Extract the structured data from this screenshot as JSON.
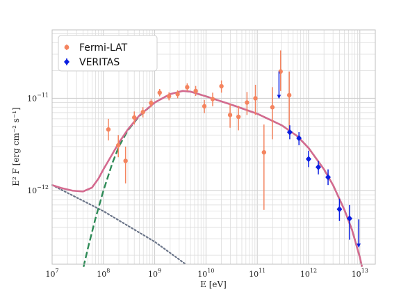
{
  "chart_data": {
    "type": "scatter",
    "xlabel": "E [eV]",
    "ylabel": "E² F [erg cm⁻² s⁻¹]",
    "xscale": "log",
    "yscale": "log",
    "xlim": [
      10000000.0,
      20000000000000.0
    ],
    "ylim": [
      1.6e-13,
      5.5e-11
    ],
    "grid": true,
    "legend_position": "top-left",
    "x_ticks": [
      {
        "value": 10000000.0,
        "base": "10",
        "exp": "7"
      },
      {
        "value": 100000000.0,
        "base": "10",
        "exp": "8"
      },
      {
        "value": 1000000000.0,
        "base": "10",
        "exp": "9"
      },
      {
        "value": 10000000000.0,
        "base": "10",
        "exp": "10"
      },
      {
        "value": 100000000000.0,
        "base": "10",
        "exp": "11"
      },
      {
        "value": 1000000000000.0,
        "base": "10",
        "exp": "12"
      },
      {
        "value": 10000000000000.0,
        "base": "10",
        "exp": "13"
      }
    ],
    "y_ticks": [
      {
        "value": 1e-12,
        "base": "10",
        "exp": "−12"
      },
      {
        "value": 1e-11,
        "base": "10",
        "exp": "−11"
      }
    ],
    "series": [
      {
        "name": "Fermi-LAT",
        "color": "#f4845f",
        "marker": "circle",
        "points": [
          {
            "x": 125000000.0,
            "y": 4.6e-12,
            "lo": 3.5e-12,
            "hi": 6e-12
          },
          {
            "x": 195000000.0,
            "y": 3.1e-12,
            "lo": 2.3e-12,
            "hi": 4e-12
          },
          {
            "x": 270000000.0,
            "y": 2.1e-12,
            "lo": 1.2e-12,
            "hi": 3e-12
          },
          {
            "x": 400000000.0,
            "y": 6.2e-12,
            "lo": 5.2e-12,
            "hi": 7.2e-12
          },
          {
            "x": 590000000.0,
            "y": 7.1e-12,
            "lo": 6.2e-12,
            "hi": 8e-12
          },
          {
            "x": 850000000.0,
            "y": 8.9e-12,
            "lo": 8e-12,
            "hi": 9.8e-12
          },
          {
            "x": 1250000000.0,
            "y": 1.15e-11,
            "lo": 1.05e-11,
            "hi": 1.26e-11
          },
          {
            "x": 1900000000.0,
            "y": 1.05e-11,
            "lo": 9.5e-12,
            "hi": 1.16e-11
          },
          {
            "x": 2800000000.0,
            "y": 1.11e-11,
            "lo": 1e-11,
            "hi": 1.22e-11
          },
          {
            "x": 4300000000.0,
            "y": 1.32e-11,
            "lo": 1.2e-11,
            "hi": 1.45e-11
          },
          {
            "x": 6300000000.0,
            "y": 1.2e-11,
            "lo": 1.06e-11,
            "hi": 1.36e-11
          },
          {
            "x": 9300000000.0,
            "y": 8.2e-12,
            "lo": 6.9e-12,
            "hi": 9.6e-12
          },
          {
            "x": 13500000000.0,
            "y": 9.8e-12,
            "lo": 8.2e-12,
            "hi": 1.15e-11
          },
          {
            "x": 20000000000.0,
            "y": 1.35e-11,
            "lo": 1.15e-11,
            "hi": 1.56e-11
          },
          {
            "x": 29500000000.0,
            "y": 6.6e-12,
            "lo": 4.8e-12,
            "hi": 8.6e-12
          },
          {
            "x": 43000000000.0,
            "y": 6.3e-12,
            "lo": 4.5e-12,
            "hi": 8.3e-12
          },
          {
            "x": 63000000000.0,
            "y": 9e-12,
            "lo": 6.6e-12,
            "hi": 1.17e-11
          },
          {
            "x": 92000000000.0,
            "y": 1e-11,
            "lo": 6.6e-12,
            "hi": 1.4e-11
          },
          {
            "x": 135000000000.0,
            "y": 2.6e-12,
            "lo": 6.2e-13,
            "hi": 5.2e-12
          },
          {
            "x": 197000000000.0,
            "y": 8e-12,
            "lo": 3.6e-12,
            "hi": 1.32e-11
          },
          {
            "x": 285000000000.0,
            "y": 1.95e-11,
            "lo": 1.2e-11,
            "hi": 3.3e-11
          },
          {
            "x": 420000000000.0,
            "y": 1.08e-11,
            "lo": 4.6e-12,
            "hi": 1.95e-11
          }
        ]
      },
      {
        "name": "VERITAS",
        "color": "#0b1ee0",
        "marker": "diamond",
        "points": [
          {
            "x": 430000000000.0,
            "y": 4.3e-12,
            "lo": 3.6e-12,
            "hi": 5.1e-12
          },
          {
            "x": 650000000000.0,
            "y": 3.7e-12,
            "lo": 3.1e-12,
            "hi": 4.3e-12
          },
          {
            "x": 1000000000000.0,
            "y": 2.2e-12,
            "lo": 1.8e-12,
            "hi": 2.7e-12
          },
          {
            "x": 1550000000000.0,
            "y": 1.8e-12,
            "lo": 1.5e-12,
            "hi": 2.1e-12
          },
          {
            "x": 2400000000000.0,
            "y": 1.4e-12,
            "lo": 1.15e-12,
            "hi": 1.7e-12
          },
          {
            "x": 4000000000000.0,
            "y": 6.3e-13,
            "lo": 4.7e-13,
            "hi": 8.2e-13
          },
          {
            "x": 6300000000000.0,
            "y": 5e-13,
            "lo": 2.95e-13,
            "hi": 7e-13
          }
        ],
        "upper_limits": [
          {
            "x": 265000000000.0,
            "y_top": 1.95e-11,
            "y_bottom": 1e-11
          },
          {
            "x": 9500000000000.0,
            "y_top": 4.9e-13,
            "y_bottom": 2.45e-13
          }
        ]
      }
    ],
    "model_curves": [
      {
        "role": "total",
        "color": "#d46a8f",
        "style": "solid",
        "points": [
          [
            10000000.0,
            1.15e-12
          ],
          [
            15000000.0,
            1.07e-12
          ],
          [
            25000000.0,
            1e-12
          ],
          [
            40000000.0,
            9.8e-13
          ],
          [
            60000000.0,
            1.08e-12
          ],
          [
            80000000.0,
            1.35e-12
          ],
          [
            100000000.0,
            1.7e-12
          ],
          [
            150000000.0,
            2.5e-12
          ],
          [
            200000000.0,
            3.3e-12
          ],
          [
            300000000.0,
            4.6e-12
          ],
          [
            500000000.0,
            6.5e-12
          ],
          [
            1000000000.0,
            9e-12
          ],
          [
            2000000000.0,
            1.11e-11
          ],
          [
            3500000000.0,
            1.2e-11
          ],
          [
            5000000000.0,
            1.18e-11
          ],
          [
            10000000000.0,
            1.05e-11
          ],
          [
            30000000000.0,
            8.6e-12
          ],
          [
            100000000000.0,
            6.8e-12
          ],
          [
            300000000000.0,
            5.1e-12
          ],
          [
            600000000000.0,
            3.9e-12
          ],
          [
            1000000000000.0,
            2.9e-12
          ],
          [
            2000000000000.0,
            1.7e-12
          ],
          [
            3000000000000.0,
            1.15e-12
          ],
          [
            5000000000000.0,
            6.2e-13
          ],
          [
            7000000000000.0,
            3.8e-13
          ],
          [
            10000000000000.0,
            1.9e-13
          ],
          [
            11000000000000.0,
            1.5e-13
          ]
        ]
      },
      {
        "role": "component-1",
        "color": "#2e8b57",
        "style": "dashed",
        "points": [
          [
            41000000.0,
            1.5e-13
          ],
          [
            50000000.0,
            2.4e-13
          ],
          [
            70000000.0,
            5e-13
          ],
          [
            100000000.0,
            1e-12
          ],
          [
            150000000.0,
            2e-12
          ],
          [
            200000000.0,
            3e-12
          ],
          [
            300000000.0,
            4.5e-12
          ],
          [
            500000000.0,
            6.4e-12
          ],
          [
            1000000000.0,
            9e-12
          ],
          [
            2000000000.0,
            1.11e-11
          ],
          [
            3500000000.0,
            1.2e-11
          ],
          [
            5000000000.0,
            1.18e-11
          ],
          [
            10000000000.0,
            1.05e-11
          ],
          [
            30000000000.0,
            8.6e-12
          ],
          [
            100000000000.0,
            6.8e-12
          ],
          [
            300000000000.0,
            5.1e-12
          ],
          [
            600000000000.0,
            3.9e-12
          ],
          [
            1000000000000.0,
            2.9e-12
          ],
          [
            2000000000000.0,
            1.7e-12
          ],
          [
            3000000000000.0,
            1.15e-12
          ],
          [
            5000000000000.0,
            6.2e-13
          ],
          [
            7000000000000.0,
            3.8e-13
          ],
          [
            10000000000000.0,
            1.9e-13
          ],
          [
            11000000000000.0,
            1.5e-13
          ]
        ]
      },
      {
        "role": "component-2",
        "color": "#6b7589",
        "style": "dotted",
        "points": [
          [
            10000000.0,
            1.15e-12
          ],
          [
            100000000.0,
            6e-13
          ],
          [
            1000000000.0,
            2.8e-13
          ],
          [
            3000000000.0,
            1.8e-13
          ],
          [
            4000000000.0,
            1.6e-13
          ]
        ]
      }
    ]
  }
}
